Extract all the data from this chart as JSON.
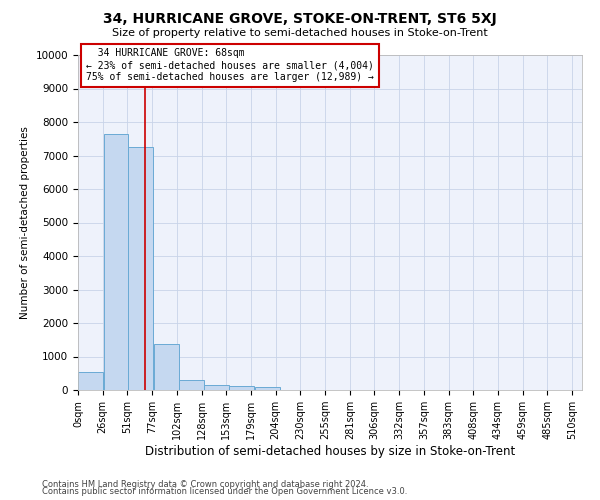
{
  "title": "34, HURRICANE GROVE, STOKE-ON-TRENT, ST6 5XJ",
  "subtitle": "Size of property relative to semi-detached houses in Stoke-on-Trent",
  "xlabel": "Distribution of semi-detached houses by size in Stoke-on-Trent",
  "ylabel": "Number of semi-detached properties",
  "bar_left_edges": [
    0,
    26,
    51,
    77,
    102,
    128,
    153,
    179,
    204,
    230,
    255,
    281,
    306,
    332,
    357,
    383,
    408,
    434,
    459,
    485
  ],
  "bar_heights": [
    530,
    7650,
    7250,
    1370,
    310,
    160,
    110,
    100,
    0,
    0,
    0,
    0,
    0,
    0,
    0,
    0,
    0,
    0,
    0,
    0
  ],
  "bin_width": 25,
  "bar_color": "#c5d8f0",
  "bar_edge_color": "#6aaad4",
  "grid_color": "#c8d4e8",
  "property_size": 68,
  "property_label": "34 HURRICANE GROVE: 68sqm",
  "pct_smaller": 23,
  "pct_smaller_count": 4004,
  "pct_larger": 75,
  "pct_larger_count": 12989,
  "vline_color": "#cc0000",
  "annotation_box_edge_color": "#cc0000",
  "ylim": [
    0,
    10000
  ],
  "yticks": [
    0,
    1000,
    2000,
    3000,
    4000,
    5000,
    6000,
    7000,
    8000,
    9000,
    10000
  ],
  "tick_labels": [
    "0sqm",
    "26sqm",
    "51sqm",
    "77sqm",
    "102sqm",
    "128sqm",
    "153sqm",
    "179sqm",
    "204sqm",
    "230sqm",
    "255sqm",
    "281sqm",
    "306sqm",
    "332sqm",
    "357sqm",
    "383sqm",
    "408sqm",
    "434sqm",
    "459sqm",
    "485sqm",
    "510sqm"
  ],
  "footer1": "Contains HM Land Registry data © Crown copyright and database right 2024.",
  "footer2": "Contains public sector information licensed under the Open Government Licence v3.0.",
  "background_color": "#ffffff",
  "plot_background": "#eef2fb"
}
